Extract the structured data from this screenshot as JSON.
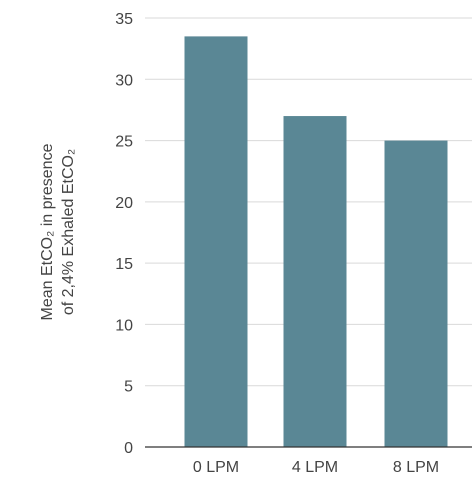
{
  "chart_data": {
    "type": "bar",
    "categories": [
      "0 LPM",
      "4 LPM",
      "8 LPM"
    ],
    "values": [
      33.5,
      27,
      25
    ],
    "ylabel_line1": "Mean EtCO₂ in presence",
    "ylabel_line2": "of 2,4% Exhaled EtCO₂",
    "xlabel": "",
    "ylim": [
      0,
      35
    ],
    "yticks": [
      0,
      5,
      10,
      15,
      20,
      25,
      30,
      35
    ],
    "grid": true,
    "bar_color": "#5a8795"
  }
}
